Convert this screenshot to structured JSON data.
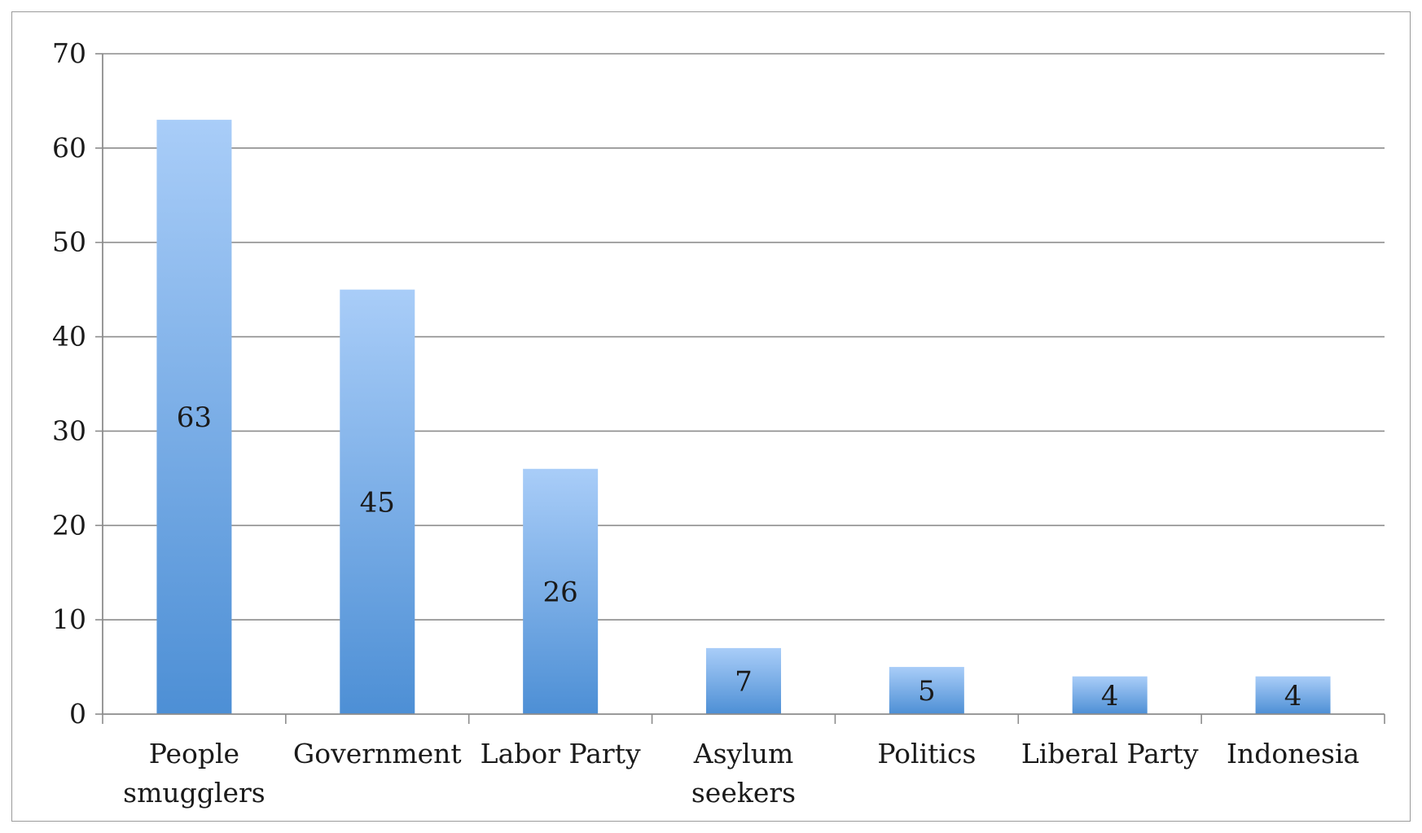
{
  "chart_data": {
    "type": "bar",
    "categories": [
      "People smugglers",
      "Government",
      "Labor Party",
      "Asylum seekers",
      "Politics",
      "Liberal Party",
      "Indonesia"
    ],
    "category_label_lines": [
      [
        "People",
        "smugglers"
      ],
      [
        "Government"
      ],
      [
        "Labor Party"
      ],
      [
        "Asylum",
        "seekers"
      ],
      [
        "Politics"
      ],
      [
        "Liberal Party"
      ],
      [
        "Indonesia"
      ]
    ],
    "values": [
      63,
      45,
      26,
      7,
      5,
      4,
      4
    ],
    "data_labels": [
      "63",
      "45",
      "26",
      "7",
      "5",
      "4",
      "4"
    ],
    "ylim": [
      0,
      70
    ],
    "yticks": [
      0,
      10,
      20,
      30,
      40,
      50,
      60,
      70
    ],
    "ytick_labels": [
      "0",
      "10",
      "20",
      "30",
      "40",
      "50",
      "60",
      "70"
    ],
    "title": "",
    "xlabel": "",
    "ylabel": "",
    "grid": "horizontal",
    "legend": "none",
    "colors": {
      "bar_top": "#a9cdf8",
      "bar_bottom": "#4d8fd5",
      "gridline": "#8c8c8c",
      "axis": "#8c8c8c",
      "text": "#1a1a1a"
    }
  }
}
